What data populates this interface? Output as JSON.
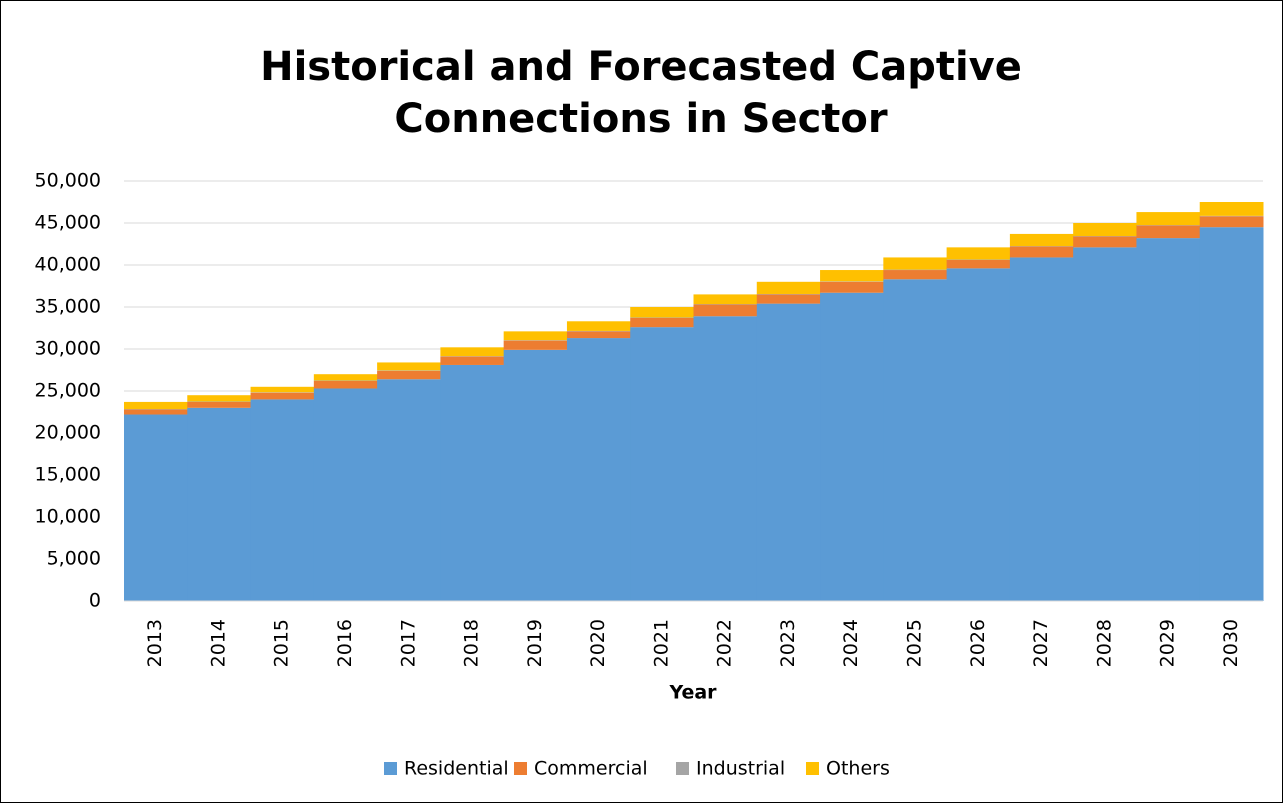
{
  "chart_data": {
    "type": "stacked_bar",
    "title": "Historical and Forecasted Captive Connections in Sector",
    "x_label": "Year",
    "categories": [
      "2013",
      "2014",
      "2015",
      "2016",
      "2017",
      "2018",
      "2019",
      "2020",
      "2021",
      "2022",
      "2023",
      "2024",
      "2025",
      "2026",
      "2027",
      "2028",
      "2029",
      "2030"
    ],
    "series": [
      {
        "name": "Residential",
        "color": "#5b9bd5",
        "values": [
          22200,
          23000,
          24000,
          25300,
          26400,
          28100,
          29900,
          31300,
          32600,
          33900,
          35400,
          36700,
          38300,
          39600,
          40900,
          42100,
          43200,
          44500
        ]
      },
      {
        "name": "Commercial",
        "color": "#ed7d31",
        "values": [
          600,
          700,
          800,
          900,
          1000,
          1000,
          1100,
          800,
          1100,
          1400,
          1100,
          1300,
          1100,
          1000,
          1300,
          1300,
          1500,
          1300
        ]
      },
      {
        "name": "Industrial",
        "color": "#a5a5a5",
        "values": [
          50,
          50,
          50,
          50,
          50,
          50,
          50,
          50,
          50,
          50,
          50,
          50,
          50,
          50,
          50,
          50,
          50,
          50
        ]
      },
      {
        "name": "Others",
        "color": "#ffc000",
        "values": [
          850,
          750,
          650,
          750,
          950,
          1050,
          1050,
          1150,
          1250,
          1150,
          1450,
          1350,
          1450,
          1450,
          1450,
          1550,
          1550,
          1650
        ]
      }
    ],
    "ylim": [
      0,
      50000
    ],
    "yticks": [
      0,
      {
        "value": 5000,
        "label": "5,000"
      },
      {
        "value": 10000,
        "label": "10,000"
      },
      {
        "value": 15000,
        "label": "15,000"
      },
      {
        "value": 20000,
        "label": "20,000"
      },
      {
        "value": 25000,
        "label": "25,000"
      },
      {
        "value": 30000,
        "label": "30,000"
      },
      {
        "value": 35000,
        "label": "35,000"
      },
      {
        "value": 40000,
        "label": "40,000"
      },
      {
        "value": 45000,
        "label": "45,000"
      },
      {
        "value": 50000,
        "label": "50,000"
      }
    ],
    "grid": true,
    "legend": "bottom"
  }
}
